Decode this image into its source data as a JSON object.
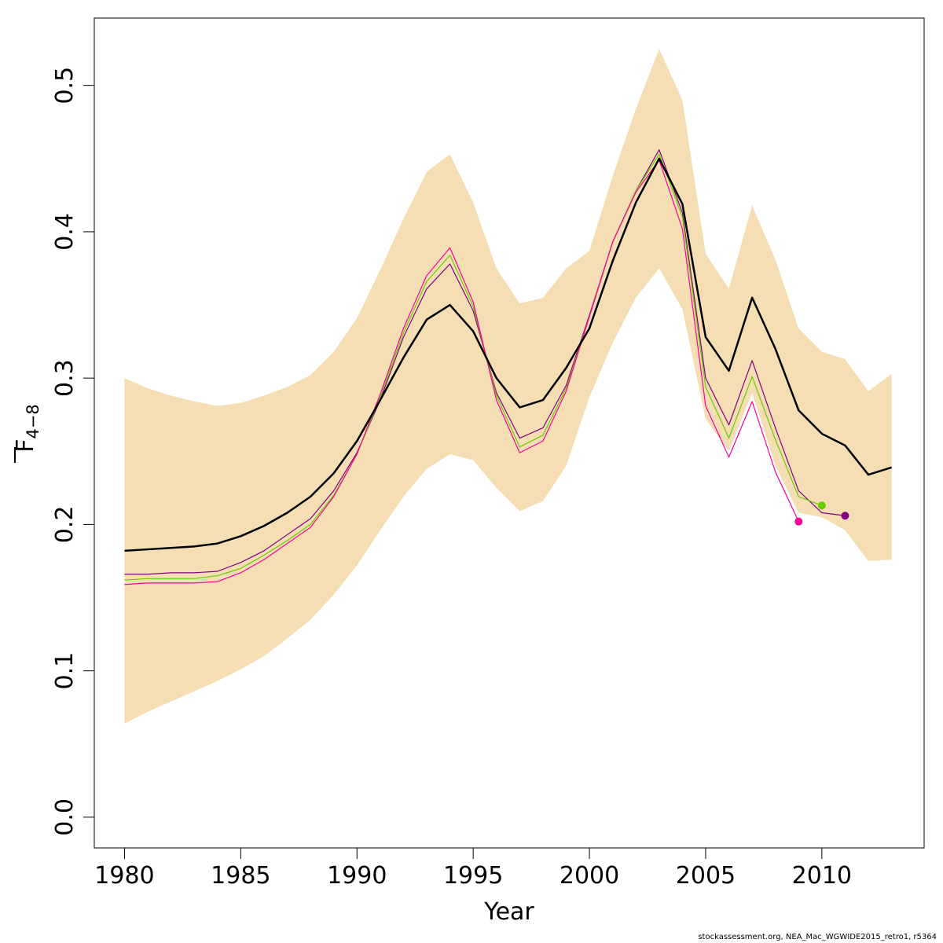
{
  "chart_data": {
    "type": "line",
    "xlabel": "Year",
    "ylabel": "F",
    "ylabel_sub": "4−8",
    "xlim": [
      1978.7,
      2014.4
    ],
    "ylim": [
      -0.021,
      0.546
    ],
    "x_ticks": [
      1980,
      1985,
      1990,
      1995,
      2000,
      2005,
      2010
    ],
    "y_ticks": [
      0.0,
      0.1,
      0.2,
      0.3,
      0.4,
      0.5
    ],
    "x_tick_labels": [
      "1980",
      "1985",
      "1990",
      "1995",
      "2000",
      "2005",
      "2010"
    ],
    "y_tick_labels": [
      "0.0",
      "0.1",
      "0.2",
      "0.3",
      "0.4",
      "0.5"
    ],
    "grid": false,
    "band": {
      "color": "#f5deb3",
      "x": [
        1980,
        1981,
        1982,
        1983,
        1984,
        1985,
        1986,
        1987,
        1988,
        1989,
        1990,
        1991,
        1992,
        1993,
        1994,
        1995,
        1996,
        1997,
        1998,
        1999,
        2000,
        2001,
        2002,
        2003,
        2004,
        2005,
        2006,
        2007,
        2008,
        2009,
        2010,
        2011,
        2012,
        2013
      ],
      "upper": [
        0.3,
        0.293,
        0.288,
        0.284,
        0.281,
        0.283,
        0.288,
        0.294,
        0.302,
        0.318,
        0.341,
        0.374,
        0.409,
        0.441,
        0.453,
        0.42,
        0.375,
        0.351,
        0.355,
        0.375,
        0.387,
        0.438,
        0.484,
        0.525,
        0.49,
        0.385,
        0.361,
        0.418,
        0.381,
        0.334,
        0.318,
        0.313,
        0.291,
        0.303
      ],
      "lower": [
        0.064,
        0.072,
        0.079,
        0.086,
        0.093,
        0.101,
        0.11,
        0.122,
        0.135,
        0.152,
        0.172,
        0.196,
        0.219,
        0.238,
        0.248,
        0.244,
        0.225,
        0.209,
        0.216,
        0.24,
        0.287,
        0.324,
        0.355,
        0.375,
        0.347,
        0.272,
        0.25,
        0.29,
        0.24,
        0.208,
        0.205,
        0.196,
        0.175,
        0.176
      ]
    },
    "series": [
      {
        "color": "#000000",
        "width": 2.5,
        "x": [
          1980,
          1981,
          1982,
          1983,
          1984,
          1985,
          1986,
          1987,
          1988,
          1989,
          1990,
          1991,
          1992,
          1993,
          1994,
          1995,
          1996,
          1997,
          1998,
          1999,
          2000,
          2001,
          2002,
          2003,
          2004,
          2005,
          2006,
          2007,
          2008,
          2009,
          2010,
          2011,
          2012,
          2013
        ],
        "values": [
          0.182,
          0.183,
          0.184,
          0.185,
          0.187,
          0.192,
          0.199,
          0.208,
          0.219,
          0.235,
          0.257,
          0.285,
          0.314,
          0.34,
          0.35,
          0.332,
          0.3,
          0.28,
          0.285,
          0.307,
          0.334,
          0.38,
          0.42,
          0.45,
          0.419,
          0.328,
          0.305,
          0.355,
          0.32,
          0.278,
          0.262,
          0.254,
          0.234,
          0.239
        ]
      },
      {
        "color": "#800080",
        "width": 1.2,
        "endpoint": true,
        "x": [
          1980,
          1981,
          1982,
          1983,
          1984,
          1985,
          1986,
          1987,
          1988,
          1989,
          1990,
          1991,
          1992,
          1993,
          1994,
          1995,
          1996,
          1997,
          1998,
          1999,
          2000,
          2001,
          2002,
          2003,
          2004,
          2005,
          2006,
          2007,
          2008,
          2009,
          2010,
          2011
        ],
        "values": [
          0.166,
          0.166,
          0.167,
          0.167,
          0.168,
          0.174,
          0.182,
          0.193,
          0.204,
          0.223,
          0.249,
          0.285,
          0.328,
          0.361,
          0.378,
          0.346,
          0.29,
          0.259,
          0.266,
          0.295,
          0.343,
          0.393,
          0.428,
          0.456,
          0.413,
          0.3,
          0.268,
          0.312,
          0.266,
          0.223,
          0.208,
          0.206
        ]
      },
      {
        "color": "#66cc00",
        "width": 1.2,
        "endpoint": true,
        "x": [
          1980,
          1981,
          1982,
          1983,
          1984,
          1985,
          1986,
          1987,
          1988,
          1989,
          1990,
          1991,
          1992,
          1993,
          1994,
          1995,
          1996,
          1997,
          1998,
          1999,
          2000,
          2001,
          2002,
          2003,
          2004,
          2005,
          2006,
          2007,
          2008,
          2009,
          2010
        ],
        "values": [
          0.162,
          0.163,
          0.163,
          0.163,
          0.165,
          0.17,
          0.179,
          0.189,
          0.2,
          0.22,
          0.248,
          0.287,
          0.331,
          0.366,
          0.384,
          0.349,
          0.288,
          0.253,
          0.261,
          0.293,
          0.342,
          0.393,
          0.428,
          0.453,
          0.41,
          0.294,
          0.259,
          0.301,
          0.258,
          0.219,
          0.213
        ]
      },
      {
        "color": "#ff0099",
        "width": 1.2,
        "endpoint": true,
        "x": [
          1980,
          1981,
          1982,
          1983,
          1984,
          1985,
          1986,
          1987,
          1988,
          1989,
          1990,
          1991,
          1992,
          1993,
          1994,
          1995,
          1996,
          1997,
          1998,
          1999,
          2000,
          2001,
          2002,
          2003,
          2004,
          2005,
          2006,
          2007,
          2008,
          2009
        ],
        "values": [
          0.159,
          0.16,
          0.16,
          0.16,
          0.161,
          0.167,
          0.176,
          0.187,
          0.198,
          0.219,
          0.248,
          0.289,
          0.334,
          0.37,
          0.389,
          0.352,
          0.285,
          0.249,
          0.257,
          0.291,
          0.342,
          0.393,
          0.427,
          0.449,
          0.402,
          0.281,
          0.246,
          0.284,
          0.236,
          0.202
        ]
      }
    ]
  },
  "footer_text": "stockassessment.org, NEA_Mac_WGWIDE2015_retro1, r5364"
}
